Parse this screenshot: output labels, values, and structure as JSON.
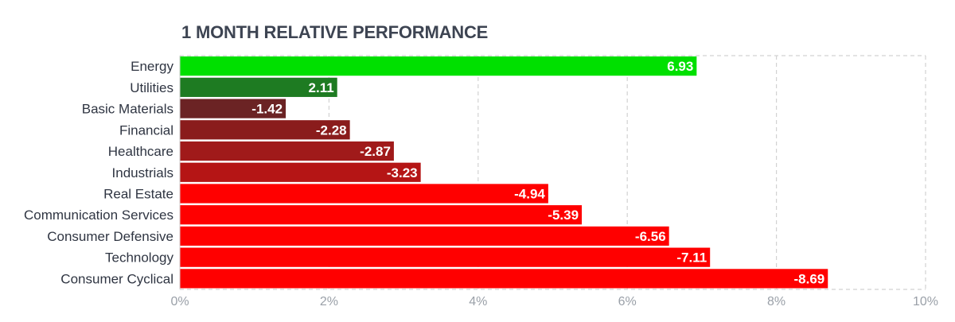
{
  "chart_data": {
    "type": "bar",
    "orientation": "horizontal",
    "title": "1 MONTH RELATIVE PERFORMANCE",
    "categories": [
      "Energy",
      "Utilities",
      "Basic Materials",
      "Financial",
      "Healthcare",
      "Industrials",
      "Real Estate",
      "Communication Services",
      "Consumer Defensive",
      "Technology",
      "Consumer Cyclical"
    ],
    "values": [
      6.93,
      2.11,
      -1.42,
      -2.28,
      -2.87,
      -3.23,
      -4.94,
      -5.39,
      -6.56,
      -7.11,
      -8.69
    ],
    "value_labels": [
      "6.93",
      "2.11",
      "-1.42",
      "-2.28",
      "-2.87",
      "-3.23",
      "-4.94",
      "-5.39",
      "-6.56",
      "-7.11",
      "-8.69"
    ],
    "colors": [
      "#00e000",
      "#1e7b22",
      "#6b2324",
      "#8a1c1c",
      "#a01a1a",
      "#b51515",
      "#ff0000",
      "#ff0000",
      "#ff0000",
      "#ff0000",
      "#ff0000"
    ],
    "bar_length": "absolute value",
    "xlim": [
      0,
      10
    ],
    "xticks": [
      0,
      2,
      4,
      6,
      8,
      10
    ],
    "xtick_labels": [
      "0%",
      "2%",
      "4%",
      "6%",
      "8%",
      "10%"
    ],
    "grid": "vertical dashed"
  }
}
